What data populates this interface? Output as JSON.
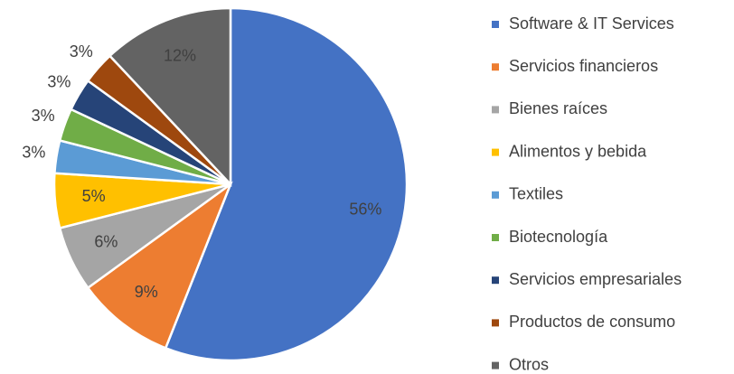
{
  "chart_data": {
    "type": "pie",
    "categories": [
      "Software & IT Services",
      "Servicios financieros",
      "Bienes raíces",
      "Alimentos y bebida",
      "Textiles",
      "Biotecnología",
      "Servicios empresariales",
      "Productos de consumo",
      "Otros"
    ],
    "values": [
      56,
      9,
      6,
      5,
      3,
      3,
      3,
      3,
      12
    ],
    "value_labels": [
      "56%",
      "9%",
      "6%",
      "5%",
      "3%",
      "3%",
      "3%",
      "3%",
      "12%"
    ],
    "colors": [
      "#4472c4",
      "#ed7d31",
      "#a5a5a5",
      "#ffc000",
      "#5b9bd5",
      "#70ad47",
      "#264478",
      "#9e480e",
      "#636363"
    ],
    "legend": "right"
  }
}
